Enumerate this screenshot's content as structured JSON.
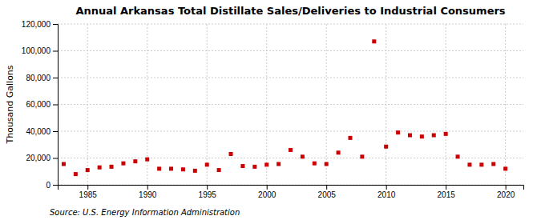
{
  "chart_data": {
    "type": "scatter",
    "title": "Annual Arkansas Total Distillate Sales/Deliveries to Industrial Consumers",
    "ylabel": "Thousand Gallons",
    "source": "Source: U.S. Energy Information Administration",
    "color": "#CC0000",
    "marker": "square",
    "grid": true,
    "x": [
      1983,
      1984,
      1985,
      1986,
      1987,
      1988,
      1989,
      1990,
      1991,
      1992,
      1993,
      1994,
      1995,
      1996,
      1997,
      1998,
      1999,
      2000,
      2001,
      2002,
      2003,
      2004,
      2005,
      2006,
      2007,
      2008,
      2009,
      2010,
      2011,
      2012,
      2013,
      2014,
      2015,
      2016,
      2017,
      2018,
      2019,
      2020
    ],
    "values": [
      15500,
      8000,
      11000,
      13000,
      13500,
      16000,
      17500,
      19000,
      12000,
      12000,
      11500,
      10500,
      15000,
      11000,
      23000,
      14000,
      13500,
      15000,
      15500,
      26000,
      21000,
      16000,
      15500,
      24000,
      35000,
      21000,
      107000,
      28500,
      39000,
      37000,
      36000,
      37000,
      38000,
      21000,
      15000,
      15000,
      15500,
      12000
    ],
    "xlim": [
      1982.5,
      2021.5
    ],
    "ylim": [
      0,
      120000
    ],
    "xticks": [
      1985,
      1990,
      1995,
      2000,
      2005,
      2010,
      2015,
      2020
    ],
    "yticks": [
      0,
      {
        "value": 20000,
        "label": "20,000"
      },
      {
        "value": 40000,
        "label": "40,000"
      },
      {
        "value": 60000,
        "label": "60,000"
      },
      {
        "value": 80000,
        "label": "80,000"
      },
      {
        "value": 100000,
        "label": "100,000"
      },
      {
        "value": 120000,
        "label": "120,000"
      }
    ]
  }
}
